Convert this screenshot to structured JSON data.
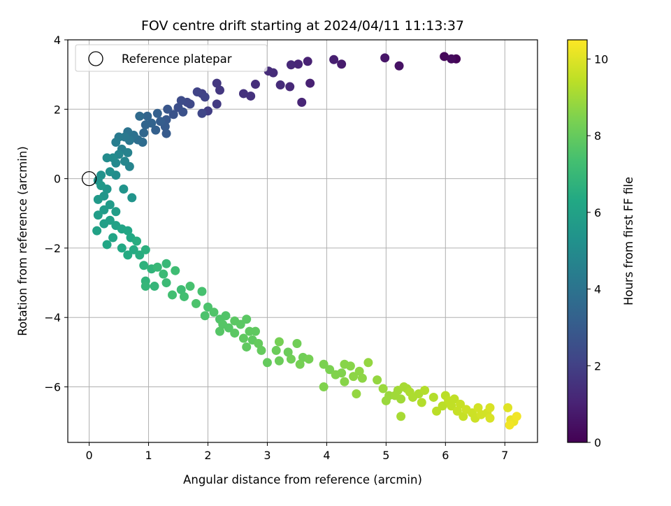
{
  "chart_data": {
    "type": "scatter",
    "title": "FOV centre drift starting at 2024/04/11 11:13:37",
    "xlabel": "Angular distance from reference (arcmin)",
    "ylabel": "Rotation from reference (arcmin)",
    "xlim": [
      -0.36,
      7.55
    ],
    "ylim": [
      -7.6,
      4.0
    ],
    "xticks": [
      0,
      1,
      2,
      3,
      4,
      5,
      6,
      7
    ],
    "yticks": [
      -6,
      -4,
      -2,
      0,
      2,
      4
    ],
    "grid": true,
    "legend": {
      "placement": "top-left",
      "entries": [
        "Reference platepar"
      ]
    },
    "reference_point": {
      "x": 0.0,
      "y": 0.0,
      "label": "Reference platepar"
    },
    "colorbar": {
      "label": "Hours from first FF file",
      "colormap": "viridis",
      "range": [
        0,
        10.5
      ],
      "ticks": [
        0,
        2,
        4,
        6,
        8,
        10
      ]
    },
    "points": [
      {
        "x": 6.18,
        "y": 3.45,
        "c": 0.1
      },
      {
        "x": 5.98,
        "y": 3.52,
        "c": 0.2
      },
      {
        "x": 6.1,
        "y": 3.45,
        "c": 0.3
      },
      {
        "x": 5.22,
        "y": 3.25,
        "c": 0.5
      },
      {
        "x": 4.98,
        "y": 3.48,
        "c": 0.6
      },
      {
        "x": 4.25,
        "y": 3.3,
        "c": 0.8
      },
      {
        "x": 4.12,
        "y": 3.43,
        "c": 0.9
      },
      {
        "x": 3.72,
        "y": 2.75,
        "c": 1.0
      },
      {
        "x": 3.68,
        "y": 3.38,
        "c": 1.0
      },
      {
        "x": 3.58,
        "y": 2.2,
        "c": 1.1
      },
      {
        "x": 3.52,
        "y": 3.3,
        "c": 1.1
      },
      {
        "x": 3.4,
        "y": 3.28,
        "c": 1.2
      },
      {
        "x": 3.38,
        "y": 2.65,
        "c": 1.2
      },
      {
        "x": 3.22,
        "y": 2.7,
        "c": 1.3
      },
      {
        "x": 3.1,
        "y": 3.05,
        "c": 1.3
      },
      {
        "x": 3.02,
        "y": 3.1,
        "c": 1.3
      },
      {
        "x": 2.8,
        "y": 2.72,
        "c": 1.4
      },
      {
        "x": 2.72,
        "y": 2.38,
        "c": 1.5
      },
      {
        "x": 2.6,
        "y": 2.45,
        "c": 1.5
      },
      {
        "x": 2.2,
        "y": 2.55,
        "c": 1.7
      },
      {
        "x": 2.15,
        "y": 2.75,
        "c": 1.7
      },
      {
        "x": 2.15,
        "y": 2.15,
        "c": 1.8
      },
      {
        "x": 2.0,
        "y": 1.95,
        "c": 1.9
      },
      {
        "x": 1.9,
        "y": 2.45,
        "c": 2.0
      },
      {
        "x": 1.82,
        "y": 2.5,
        "c": 2.1
      },
      {
        "x": 1.95,
        "y": 2.35,
        "c": 2.1
      },
      {
        "x": 1.9,
        "y": 1.88,
        "c": 2.2
      },
      {
        "x": 1.7,
        "y": 2.15,
        "c": 2.3
      },
      {
        "x": 1.65,
        "y": 2.2,
        "c": 2.3
      },
      {
        "x": 1.55,
        "y": 2.25,
        "c": 2.4
      },
      {
        "x": 1.5,
        "y": 2.05,
        "c": 2.5
      },
      {
        "x": 1.58,
        "y": 1.92,
        "c": 2.6
      },
      {
        "x": 1.42,
        "y": 1.85,
        "c": 2.7
      },
      {
        "x": 1.32,
        "y": 2.0,
        "c": 2.8
      },
      {
        "x": 1.3,
        "y": 1.7,
        "c": 2.9
      },
      {
        "x": 1.28,
        "y": 1.5,
        "c": 3.0
      },
      {
        "x": 1.3,
        "y": 1.3,
        "c": 3.0
      },
      {
        "x": 1.2,
        "y": 1.65,
        "c": 3.1
      },
      {
        "x": 1.15,
        "y": 1.88,
        "c": 3.2
      },
      {
        "x": 1.12,
        "y": 1.4,
        "c": 3.2
      },
      {
        "x": 1.05,
        "y": 1.6,
        "c": 3.3
      },
      {
        "x": 0.98,
        "y": 1.8,
        "c": 3.4
      },
      {
        "x": 0.95,
        "y": 1.55,
        "c": 3.4
      },
      {
        "x": 0.92,
        "y": 1.32,
        "c": 3.5
      },
      {
        "x": 0.85,
        "y": 1.8,
        "c": 3.6
      },
      {
        "x": 0.9,
        "y": 1.05,
        "c": 3.7
      },
      {
        "x": 0.82,
        "y": 1.12,
        "c": 3.8
      },
      {
        "x": 0.75,
        "y": 1.25,
        "c": 3.9
      },
      {
        "x": 0.65,
        "y": 1.35,
        "c": 4.0
      },
      {
        "x": 0.68,
        "y": 1.1,
        "c": 4.1
      },
      {
        "x": 0.6,
        "y": 1.2,
        "c": 4.2
      },
      {
        "x": 0.5,
        "y": 1.2,
        "c": 4.3
      },
      {
        "x": 0.45,
        "y": 1.05,
        "c": 4.4
      },
      {
        "x": 0.55,
        "y": 0.85,
        "c": 4.5
      },
      {
        "x": 0.65,
        "y": 0.75,
        "c": 4.6
      },
      {
        "x": 0.68,
        "y": 0.35,
        "c": 4.7
      },
      {
        "x": 0.6,
        "y": 0.5,
        "c": 4.8
      },
      {
        "x": 0.5,
        "y": 0.7,
        "c": 4.8
      },
      {
        "x": 0.45,
        "y": 0.45,
        "c": 4.9
      },
      {
        "x": 0.4,
        "y": 0.6,
        "c": 5.0
      },
      {
        "x": 0.3,
        "y": 0.6,
        "c": 5.0
      },
      {
        "x": 0.45,
        "y": 0.1,
        "c": 5.1
      },
      {
        "x": 0.35,
        "y": 0.2,
        "c": 5.2
      },
      {
        "x": 0.2,
        "y": 0.1,
        "c": 5.3
      },
      {
        "x": 0.15,
        "y": -0.05,
        "c": 5.3
      },
      {
        "x": 0.58,
        "y": -0.3,
        "c": 5.4
      },
      {
        "x": 0.72,
        "y": -0.55,
        "c": 5.4
      },
      {
        "x": 0.3,
        "y": -0.3,
        "c": 5.5
      },
      {
        "x": 0.25,
        "y": -0.5,
        "c": 5.5
      },
      {
        "x": 0.2,
        "y": -0.2,
        "c": 5.6
      },
      {
        "x": 0.15,
        "y": -0.6,
        "c": 5.6
      },
      {
        "x": 0.35,
        "y": -0.75,
        "c": 5.7
      },
      {
        "x": 0.25,
        "y": -0.9,
        "c": 5.7
      },
      {
        "x": 0.45,
        "y": -0.95,
        "c": 5.8
      },
      {
        "x": 0.15,
        "y": -1.05,
        "c": 5.8
      },
      {
        "x": 0.35,
        "y": -1.2,
        "c": 5.9
      },
      {
        "x": 0.25,
        "y": -1.3,
        "c": 5.9
      },
      {
        "x": 0.13,
        "y": -1.5,
        "c": 6.0
      },
      {
        "x": 0.45,
        "y": -1.35,
        "c": 6.0
      },
      {
        "x": 0.55,
        "y": -1.45,
        "c": 6.1
      },
      {
        "x": 0.4,
        "y": -1.7,
        "c": 6.1
      },
      {
        "x": 0.3,
        "y": -1.9,
        "c": 6.2
      },
      {
        "x": 0.65,
        "y": -1.5,
        "c": 6.2
      },
      {
        "x": 0.7,
        "y": -1.7,
        "c": 6.3
      },
      {
        "x": 0.55,
        "y": -2.0,
        "c": 6.3
      },
      {
        "x": 0.65,
        "y": -2.2,
        "c": 6.4
      },
      {
        "x": 0.75,
        "y": -2.05,
        "c": 6.4
      },
      {
        "x": 0.85,
        "y": -2.2,
        "c": 6.5
      },
      {
        "x": 0.8,
        "y": -1.8,
        "c": 6.5
      },
      {
        "x": 0.95,
        "y": -2.05,
        "c": 6.6
      },
      {
        "x": 0.92,
        "y": -2.5,
        "c": 6.7
      },
      {
        "x": 1.05,
        "y": -2.6,
        "c": 6.8
      },
      {
        "x": 0.95,
        "y": -2.95,
        "c": 6.8
      },
      {
        "x": 1.1,
        "y": -3.1,
        "c": 6.9
      },
      {
        "x": 0.95,
        "y": -3.1,
        "c": 6.9
      },
      {
        "x": 1.15,
        "y": -2.55,
        "c": 7.0
      },
      {
        "x": 1.3,
        "y": -2.45,
        "c": 7.0
      },
      {
        "x": 1.25,
        "y": -2.75,
        "c": 7.1
      },
      {
        "x": 1.3,
        "y": -3.0,
        "c": 7.1
      },
      {
        "x": 1.45,
        "y": -2.65,
        "c": 7.2
      },
      {
        "x": 1.55,
        "y": -3.2,
        "c": 7.2
      },
      {
        "x": 1.4,
        "y": -3.35,
        "c": 7.3
      },
      {
        "x": 1.6,
        "y": -3.4,
        "c": 7.3
      },
      {
        "x": 1.7,
        "y": -3.1,
        "c": 7.4
      },
      {
        "x": 1.9,
        "y": -3.25,
        "c": 7.4
      },
      {
        "x": 1.8,
        "y": -3.6,
        "c": 7.5
      },
      {
        "x": 2.0,
        "y": -3.7,
        "c": 7.5
      },
      {
        "x": 1.95,
        "y": -3.95,
        "c": 7.5
      },
      {
        "x": 2.1,
        "y": -3.85,
        "c": 7.6
      },
      {
        "x": 2.2,
        "y": -4.05,
        "c": 7.6
      },
      {
        "x": 2.3,
        "y": -3.95,
        "c": 7.6
      },
      {
        "x": 2.25,
        "y": -4.2,
        "c": 7.7
      },
      {
        "x": 2.2,
        "y": -4.4,
        "c": 7.7
      },
      {
        "x": 2.35,
        "y": -4.3,
        "c": 7.7
      },
      {
        "x": 2.45,
        "y": -4.1,
        "c": 7.8
      },
      {
        "x": 2.55,
        "y": -4.2,
        "c": 7.8
      },
      {
        "x": 2.45,
        "y": -4.45,
        "c": 7.8
      },
      {
        "x": 2.65,
        "y": -4.05,
        "c": 7.8
      },
      {
        "x": 2.7,
        "y": -4.4,
        "c": 7.9
      },
      {
        "x": 2.6,
        "y": -4.6,
        "c": 7.9
      },
      {
        "x": 2.75,
        "y": -4.65,
        "c": 7.9
      },
      {
        "x": 2.8,
        "y": -4.4,
        "c": 7.9
      },
      {
        "x": 2.65,
        "y": -4.85,
        "c": 7.9
      },
      {
        "x": 2.85,
        "y": -4.75,
        "c": 8.0
      },
      {
        "x": 2.9,
        "y": -4.95,
        "c": 8.0
      },
      {
        "x": 3.0,
        "y": -5.3,
        "c": 8.0
      },
      {
        "x": 3.15,
        "y": -4.95,
        "c": 8.1
      },
      {
        "x": 3.2,
        "y": -5.25,
        "c": 8.1
      },
      {
        "x": 3.35,
        "y": -5.0,
        "c": 8.1
      },
      {
        "x": 3.5,
        "y": -4.75,
        "c": 8.2
      },
      {
        "x": 3.4,
        "y": -5.2,
        "c": 8.2
      },
      {
        "x": 3.6,
        "y": -5.15,
        "c": 8.2
      },
      {
        "x": 3.7,
        "y": -5.2,
        "c": 8.3
      },
      {
        "x": 3.55,
        "y": -5.35,
        "c": 8.3
      },
      {
        "x": 3.2,
        "y": -4.7,
        "c": 8.3
      },
      {
        "x": 3.95,
        "y": -5.35,
        "c": 8.4
      },
      {
        "x": 4.05,
        "y": -5.5,
        "c": 8.4
      },
      {
        "x": 3.95,
        "y": -6.0,
        "c": 8.5
      },
      {
        "x": 4.15,
        "y": -5.65,
        "c": 8.5
      },
      {
        "x": 4.25,
        "y": -5.6,
        "c": 8.5
      },
      {
        "x": 4.3,
        "y": -5.85,
        "c": 8.6
      },
      {
        "x": 4.3,
        "y": -5.35,
        "c": 8.6
      },
      {
        "x": 4.4,
        "y": -5.4,
        "c": 8.6
      },
      {
        "x": 4.45,
        "y": -5.7,
        "c": 8.7
      },
      {
        "x": 4.55,
        "y": -5.55,
        "c": 8.7
      },
      {
        "x": 4.6,
        "y": -5.75,
        "c": 8.7
      },
      {
        "x": 4.5,
        "y": -6.2,
        "c": 8.8
      },
      {
        "x": 4.7,
        "y": -5.3,
        "c": 8.8
      },
      {
        "x": 4.85,
        "y": -5.8,
        "c": 8.8
      },
      {
        "x": 4.95,
        "y": -6.05,
        "c": 8.9
      },
      {
        "x": 5.0,
        "y": -6.4,
        "c": 8.9
      },
      {
        "x": 5.05,
        "y": -6.25,
        "c": 8.9
      },
      {
        "x": 5.2,
        "y": -6.1,
        "c": 9.0
      },
      {
        "x": 5.25,
        "y": -6.35,
        "c": 9.0
      },
      {
        "x": 5.15,
        "y": -6.25,
        "c": 9.0
      },
      {
        "x": 5.3,
        "y": -6.0,
        "c": 9.1
      },
      {
        "x": 5.35,
        "y": -6.05,
        "c": 9.1
      },
      {
        "x": 5.25,
        "y": -6.85,
        "c": 9.1
      },
      {
        "x": 5.4,
        "y": -6.15,
        "c": 9.2
      },
      {
        "x": 5.45,
        "y": -6.3,
        "c": 9.2
      },
      {
        "x": 5.55,
        "y": -6.2,
        "c": 9.2
      },
      {
        "x": 5.6,
        "y": -6.45,
        "c": 9.3
      },
      {
        "x": 5.65,
        "y": -6.1,
        "c": 9.3
      },
      {
        "x": 5.8,
        "y": -6.3,
        "c": 9.3
      },
      {
        "x": 5.85,
        "y": -6.7,
        "c": 9.4
      },
      {
        "x": 5.95,
        "y": -6.55,
        "c": 9.4
      },
      {
        "x": 6.0,
        "y": -6.25,
        "c": 9.4
      },
      {
        "x": 6.05,
        "y": -6.4,
        "c": 9.5
      },
      {
        "x": 6.1,
        "y": -6.55,
        "c": 9.5
      },
      {
        "x": 6.15,
        "y": -6.35,
        "c": 9.5
      },
      {
        "x": 6.2,
        "y": -6.7,
        "c": 9.6
      },
      {
        "x": 6.25,
        "y": -6.5,
        "c": 9.6
      },
      {
        "x": 6.3,
        "y": -6.85,
        "c": 9.6
      },
      {
        "x": 6.35,
        "y": -6.65,
        "c": 9.7
      },
      {
        "x": 6.45,
        "y": -6.75,
        "c": 9.7
      },
      {
        "x": 6.5,
        "y": -6.9,
        "c": 9.7
      },
      {
        "x": 6.55,
        "y": -6.6,
        "c": 9.8
      },
      {
        "x": 6.6,
        "y": -6.8,
        "c": 9.8
      },
      {
        "x": 6.7,
        "y": -6.75,
        "c": 9.8
      },
      {
        "x": 6.75,
        "y": -6.9,
        "c": 9.9
      },
      {
        "x": 6.75,
        "y": -6.6,
        "c": 9.9
      },
      {
        "x": 7.05,
        "y": -6.6,
        "c": 10.0
      },
      {
        "x": 7.1,
        "y": -6.95,
        "c": 10.1
      },
      {
        "x": 7.15,
        "y": -7.0,
        "c": 10.2
      },
      {
        "x": 7.2,
        "y": -6.85,
        "c": 10.3
      },
      {
        "x": 7.08,
        "y": -7.1,
        "c": 10.3
      }
    ]
  }
}
